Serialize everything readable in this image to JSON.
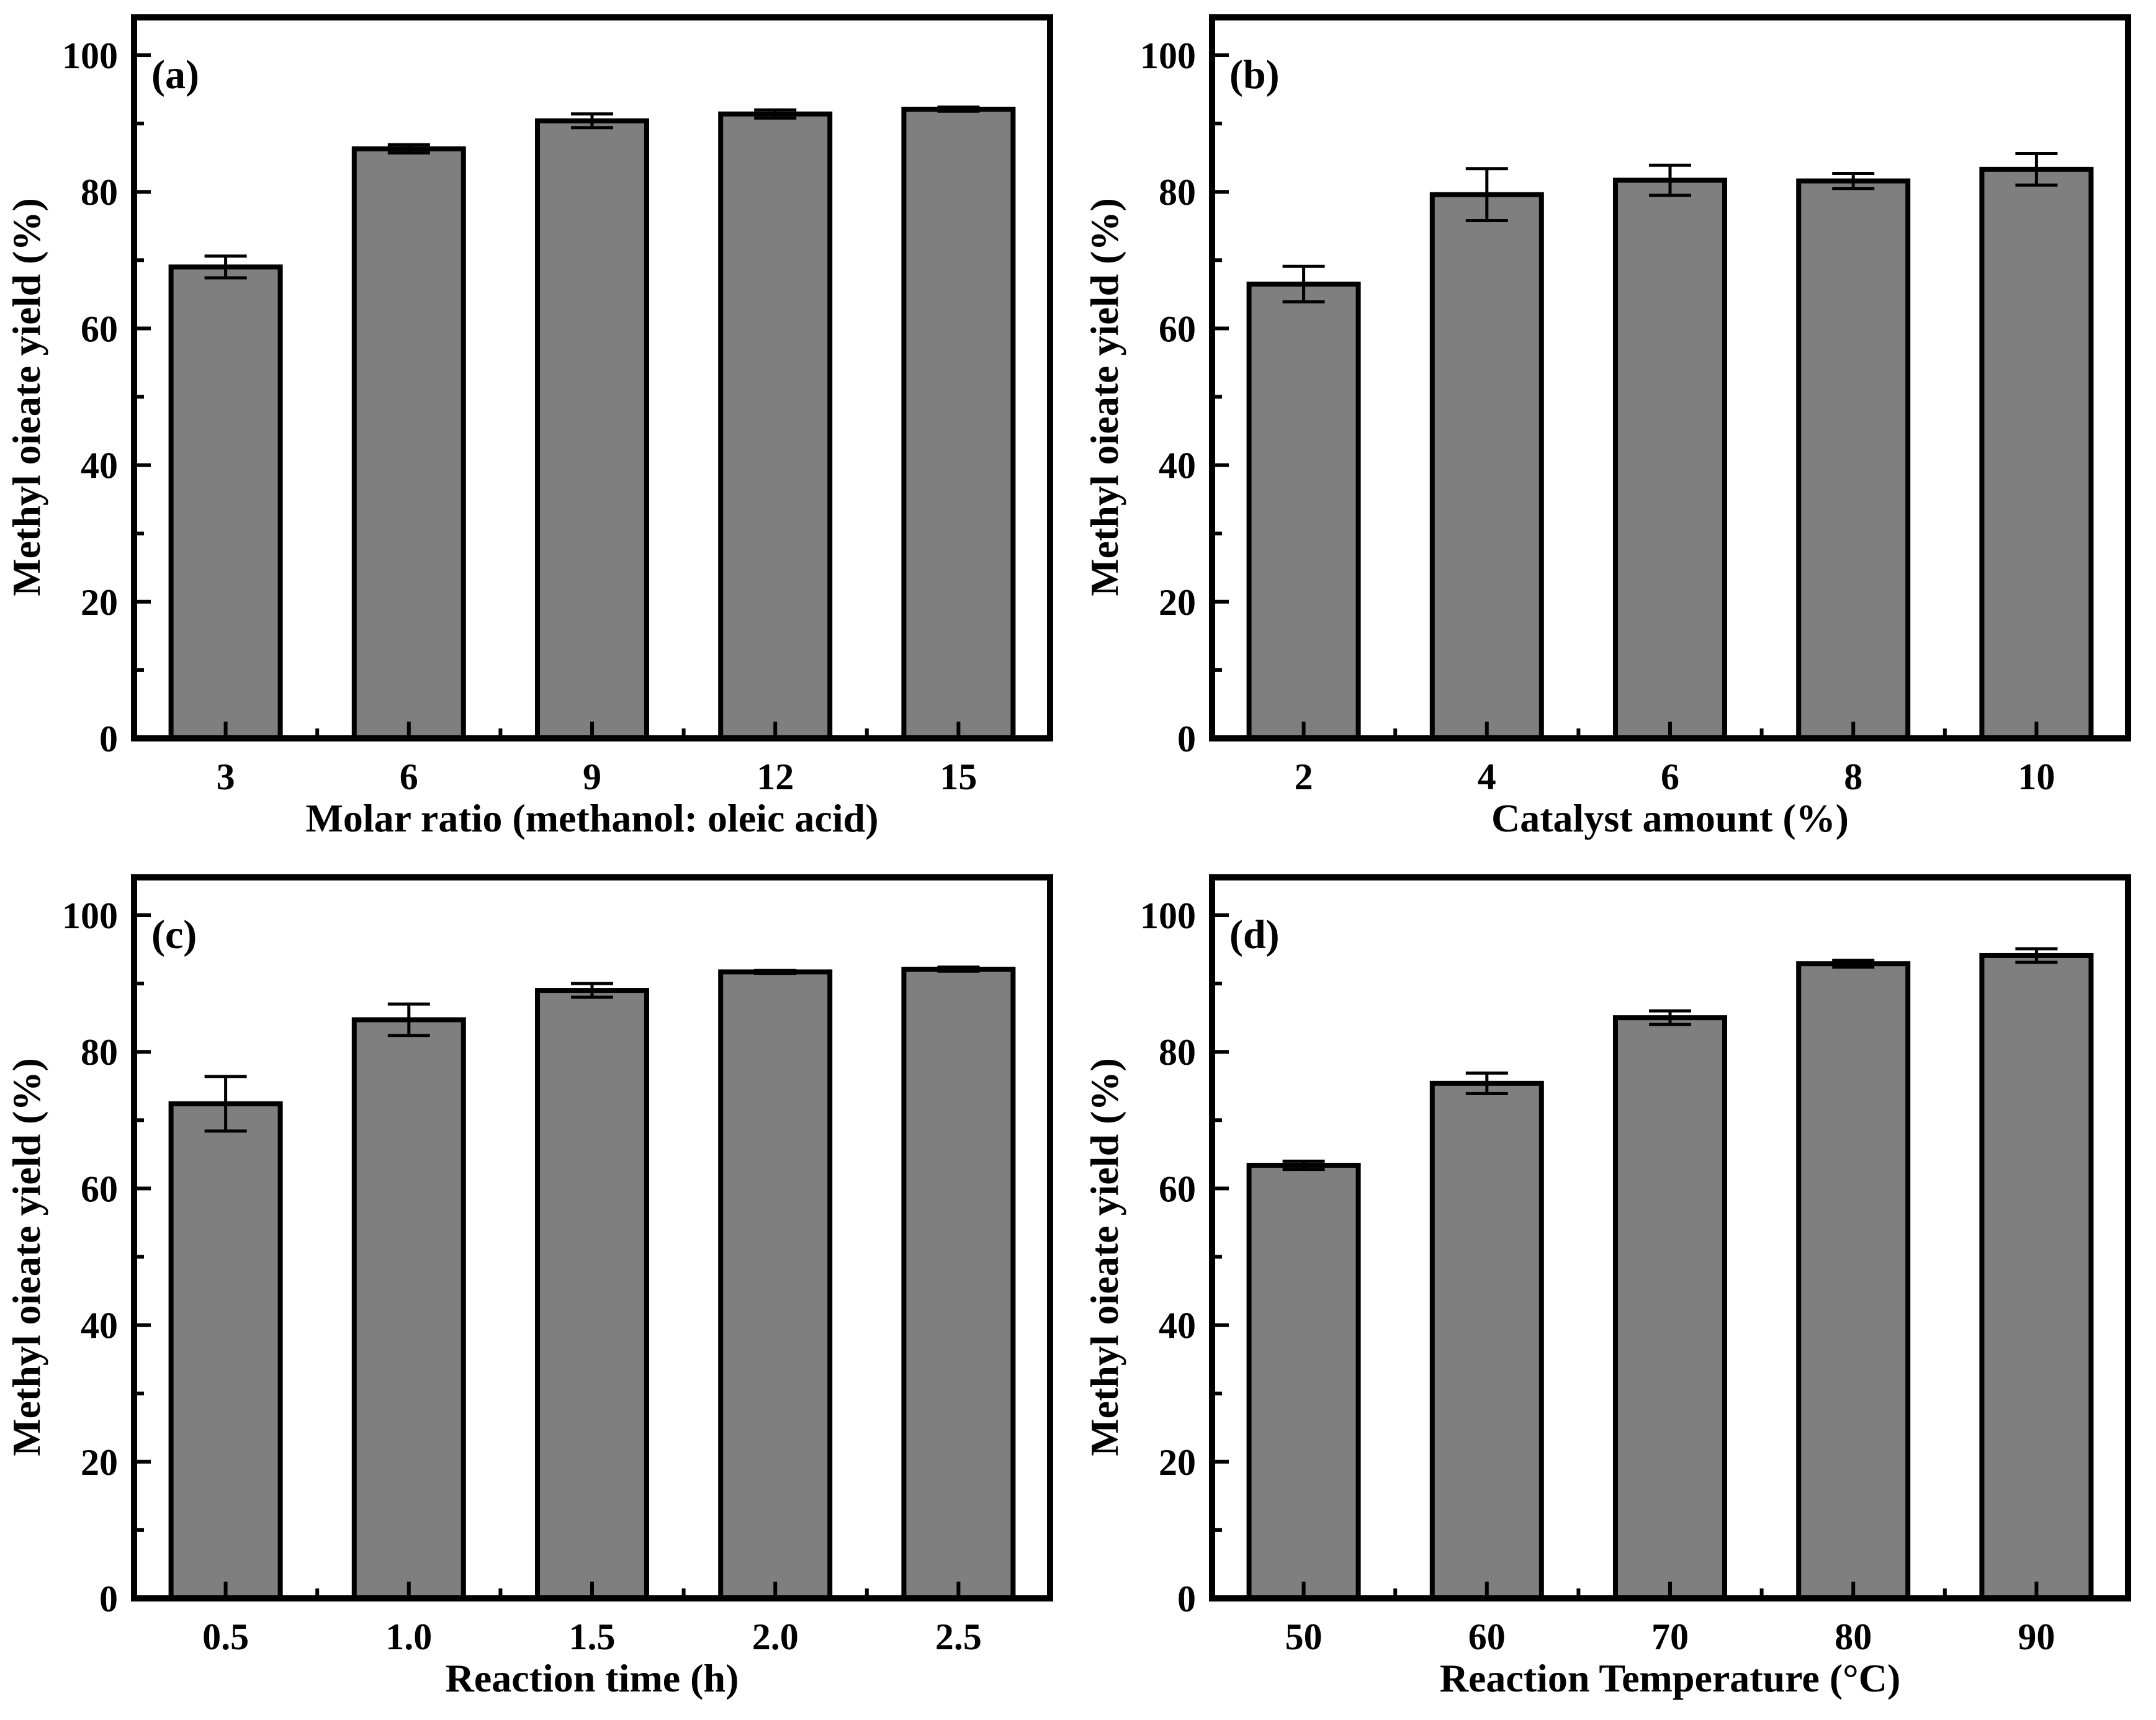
{
  "style": {
    "background": "#FFFFFF",
    "bar_fill": "#7F7F7F",
    "bar_edge": "#000000",
    "axis_color": "#000000",
    "text_color": "#000000"
  },
  "chart_data": [
    {
      "type": "bar",
      "panel_label": "(a)",
      "categories": [
        "3",
        "6",
        "9",
        "12",
        "15"
      ],
      "values": [
        69.0,
        86.3,
        90.4,
        91.4,
        92.1
      ],
      "errors": [
        1.6,
        0.6,
        1.0,
        0.6,
        0.3
      ],
      "xlabel": "Molar ratio (methanol: oleic acid)",
      "ylabel": "Methyl oieate yield (%)",
      "ylim": [
        0,
        105
      ],
      "yticks_major": [
        0,
        20,
        40,
        60,
        80,
        100
      ],
      "yticks_minor": [
        10,
        30,
        50,
        70,
        90
      ],
      "grid": false,
      "legend_position": "none"
    },
    {
      "type": "bar",
      "panel_label": "(b)",
      "categories": [
        "2",
        "4",
        "6",
        "8",
        "10"
      ],
      "values": [
        66.5,
        79.6,
        81.7,
        81.6,
        83.3
      ],
      "errors": [
        2.6,
        3.8,
        2.2,
        1.1,
        2.3
      ],
      "xlabel": "Catalyst amount (%)",
      "ylabel": "Methyl oieate yield (%)",
      "ylim": [
        0,
        105
      ],
      "yticks_major": [
        0,
        20,
        40,
        60,
        80,
        100
      ],
      "yticks_minor": [
        10,
        30,
        50,
        70,
        90
      ],
      "grid": false,
      "legend_position": "none"
    },
    {
      "type": "bar",
      "panel_label": "(c)",
      "categories": [
        "0.5",
        "1.0",
        "1.5",
        "2.0",
        "2.5"
      ],
      "values": [
        72.4,
        84.7,
        89.0,
        91.7,
        92.1
      ],
      "errors": [
        4.0,
        2.3,
        1.0,
        0.2,
        0.3
      ],
      "xlabel": "Reaction time (h)",
      "ylabel": "Methyl oieate yield (%)",
      "ylim": [
        0,
        105
      ],
      "yticks_major": [
        0,
        20,
        40,
        60,
        80,
        100
      ],
      "yticks_minor": [
        10,
        30,
        50,
        70,
        90
      ],
      "grid": false,
      "legend_position": "none"
    },
    {
      "type": "bar",
      "panel_label": "(d)",
      "categories": [
        "50",
        "60",
        "70",
        "80",
        "90"
      ],
      "values": [
        63.4,
        75.4,
        85.0,
        92.9,
        94.1
      ],
      "errors": [
        0.6,
        1.5,
        1.0,
        0.5,
        1.0
      ],
      "xlabel": "Reaction Temperature (°C)",
      "ylabel": "Methyl oieate yield (%)",
      "ylim": [
        0,
        105
      ],
      "yticks_major": [
        0,
        20,
        40,
        60,
        80,
        100
      ],
      "yticks_minor": [
        10,
        30,
        50,
        70,
        90
      ],
      "grid": false,
      "legend_position": "none"
    }
  ]
}
